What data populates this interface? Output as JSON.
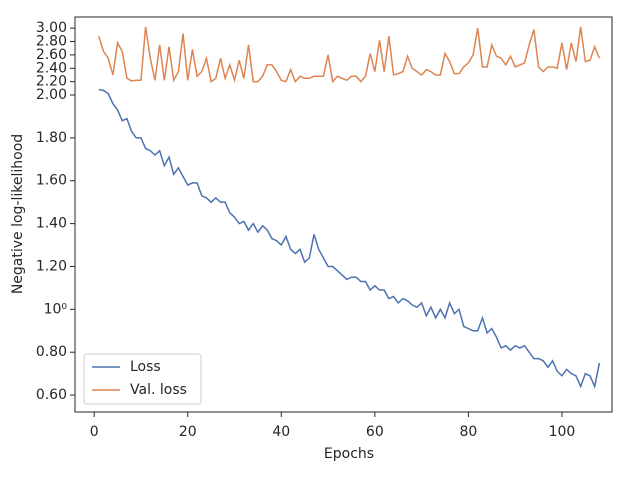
{
  "chart_data": {
    "type": "line",
    "xlabel": "Epochs",
    "ylabel": "Negative log-likelihood",
    "x": [
      1,
      2,
      3,
      4,
      5,
      6,
      7,
      8,
      9,
      10,
      11,
      12,
      13,
      14,
      15,
      16,
      17,
      18,
      19,
      20,
      21,
      22,
      23,
      24,
      25,
      26,
      27,
      28,
      29,
      30,
      31,
      32,
      33,
      34,
      35,
      36,
      37,
      38,
      39,
      40,
      41,
      42,
      43,
      44,
      45,
      46,
      47,
      48,
      49,
      50,
      51,
      52,
      53,
      54,
      55,
      56,
      57,
      58,
      59,
      60,
      61,
      62,
      63,
      64,
      65,
      66,
      67,
      68,
      69,
      70,
      71,
      72,
      73,
      74,
      75,
      76,
      77,
      78,
      79,
      80,
      81,
      82,
      83,
      84,
      85,
      86,
      87,
      88,
      89,
      90,
      91,
      92,
      93,
      94,
      95,
      96,
      97,
      98,
      99,
      100,
      101,
      102,
      103,
      104,
      105,
      106,
      107,
      108
    ],
    "series": [
      {
        "name": "Loss",
        "color": "#4c72b0",
        "values": [
          2.08,
          2.07,
          2.02,
          1.96,
          1.93,
          1.88,
          1.89,
          1.83,
          1.8,
          1.8,
          1.75,
          1.74,
          1.72,
          1.74,
          1.67,
          1.71,
          1.63,
          1.66,
          1.62,
          1.58,
          1.59,
          1.59,
          1.53,
          1.52,
          1.5,
          1.52,
          1.5,
          1.5,
          1.45,
          1.43,
          1.4,
          1.41,
          1.37,
          1.4,
          1.36,
          1.39,
          1.37,
          1.33,
          1.32,
          1.3,
          1.34,
          1.28,
          1.26,
          1.28,
          1.22,
          1.24,
          1.35,
          1.28,
          1.24,
          1.2,
          1.2,
          1.18,
          1.16,
          1.14,
          1.15,
          1.15,
          1.13,
          1.13,
          1.09,
          1.11,
          1.09,
          1.09,
          1.05,
          1.06,
          1.03,
          1.05,
          1.04,
          1.02,
          1.01,
          1.03,
          0.97,
          1.01,
          0.96,
          1.0,
          0.96,
          1.03,
          0.98,
          1.0,
          0.92,
          0.91,
          0.9,
          0.9,
          0.96,
          0.89,
          0.91,
          0.87,
          0.82,
          0.83,
          0.81,
          0.83,
          0.82,
          0.83,
          0.8,
          0.77,
          0.77,
          0.76,
          0.73,
          0.76,
          0.71,
          0.69,
          0.72,
          0.7,
          0.69,
          0.64,
          0.7,
          0.69,
          0.64,
          0.75
        ]
      },
      {
        "name": "Val. loss",
        "color": "#dd8452",
        "values": [
          2.88,
          2.65,
          2.55,
          2.3,
          2.78,
          2.65,
          2.25,
          2.21,
          2.22,
          2.22,
          3.02,
          2.55,
          2.22,
          2.75,
          2.22,
          2.72,
          2.22,
          2.35,
          2.92,
          2.22,
          2.68,
          2.28,
          2.35,
          2.55,
          2.2,
          2.25,
          2.55,
          2.25,
          2.45,
          2.22,
          2.52,
          2.25,
          2.75,
          2.2,
          2.2,
          2.28,
          2.45,
          2.45,
          2.35,
          2.22,
          2.2,
          2.38,
          2.2,
          2.28,
          2.25,
          2.25,
          2.28,
          2.28,
          2.28,
          2.6,
          2.2,
          2.28,
          2.25,
          2.22,
          2.28,
          2.28,
          2.2,
          2.28,
          2.62,
          2.35,
          2.82,
          2.35,
          2.88,
          2.3,
          2.32,
          2.35,
          2.58,
          2.4,
          2.35,
          2.3,
          2.38,
          2.35,
          2.3,
          2.3,
          2.62,
          2.5,
          2.32,
          2.32,
          2.42,
          2.48,
          2.6,
          3.0,
          2.42,
          2.42,
          2.75,
          2.58,
          2.55,
          2.45,
          2.58,
          2.42,
          2.45,
          2.48,
          2.75,
          2.98,
          2.42,
          2.35,
          2.42,
          2.42,
          2.4,
          2.78,
          2.38,
          2.78,
          2.5,
          3.02,
          2.5,
          2.52,
          2.72,
          2.55
        ]
      }
    ],
    "xlim": [
      -4.1,
      110.7
    ],
    "xticks": [
      0,
      20,
      40,
      60,
      80,
      100
    ],
    "ylim": [
      0.521,
      3.167
    ],
    "ybreak": 2.0,
    "yticks": [
      {
        "value": 0.6,
        "label": "0.60"
      },
      {
        "value": 0.8,
        "label": "0.80"
      },
      {
        "value": 1,
        "label": "10⁰"
      },
      {
        "value": 1.2,
        "label": "1.20"
      },
      {
        "value": 1.4,
        "label": "1.40"
      },
      {
        "value": 1.6,
        "label": "1.60"
      },
      {
        "value": 1.8,
        "label": "1.80"
      },
      {
        "value": 2.0,
        "label": "2.00"
      },
      {
        "value": 2.2,
        "label": "2.20"
      },
      {
        "value": 2.4,
        "label": "2.40"
      },
      {
        "value": 2.6,
        "label": "2.60"
      },
      {
        "value": 2.8,
        "label": "2.80"
      },
      {
        "value": 3.0,
        "label": "3.00"
      }
    ],
    "legend": "lower left"
  }
}
